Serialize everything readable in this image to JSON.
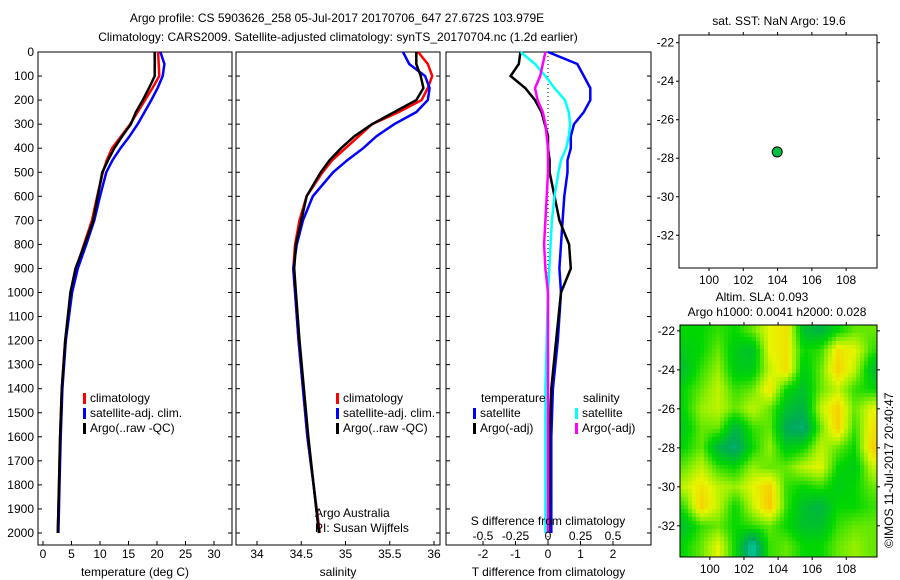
{
  "title": {
    "line1": "Argo profile: CS 5903626_258 05-Jul-2017 20170706_647 27.672S 103.979E",
    "line2": "Climatology: CARS2009. Satellite-adjusted climatology: synTS_20170704.nc (1.2d earlier)"
  },
  "chart_data": [
    {
      "id": "temperature",
      "type": "line",
      "xlabel": "temperature (deg C)",
      "ylabel": "",
      "xlim": [
        -0.9,
        33
      ],
      "ylim": [
        2050,
        0
      ],
      "xticks": [
        0,
        5,
        10,
        15,
        20,
        25,
        30
      ],
      "yticks": [
        0,
        100,
        200,
        300,
        400,
        500,
        600,
        700,
        800,
        900,
        1000,
        1100,
        1200,
        1300,
        1400,
        1500,
        1600,
        1700,
        1800,
        1900,
        2000
      ],
      "depth": [
        0,
        50,
        100,
        150,
        200,
        250,
        300,
        350,
        400,
        450,
        500,
        600,
        700,
        800,
        900,
        1000,
        1200,
        1400,
        1600,
        1800,
        2000
      ],
      "series": [
        {
          "name": "climatology",
          "color": "#ff0000",
          "values": [
            20.2,
            20.3,
            20.4,
            19.2,
            17.9,
            16.6,
            15.3,
            13.7,
            12.1,
            11.2,
            10.5,
            9.5,
            8.6,
            7.2,
            5.8,
            4.9,
            3.9,
            3.3,
            3.0,
            2.8,
            2.6
          ]
        },
        {
          "name": "satellite-adj. clim.",
          "color": "#0000ff",
          "values": [
            20.6,
            21.3,
            21.0,
            20.1,
            19.0,
            17.8,
            16.6,
            15.2,
            13.6,
            12.2,
            11.1,
            10.0,
            9.0,
            7.6,
            6.1,
            5.1,
            4.0,
            3.4,
            3.1,
            2.9,
            2.7
          ]
        },
        {
          "name": "Argo(..raw -QC)",
          "color": "#000000",
          "values": [
            19.6,
            19.6,
            19.6,
            18.6,
            17.5,
            16.3,
            15.4,
            13.9,
            12.5,
            11.4,
            10.4,
            9.6,
            8.8,
            7.3,
            5.7,
            4.8,
            3.9,
            3.3,
            3.0,
            2.8,
            2.6
          ]
        }
      ],
      "legend": [
        "climatology",
        "satellite-adj. clim.",
        "Argo(..raw -QC)"
      ]
    },
    {
      "id": "salinity",
      "type": "line",
      "xlabel": "salinity",
      "xlim": [
        33.77,
        36.06
      ],
      "ylim": [
        2050,
        0
      ],
      "xticks": [
        34,
        34.5,
        35,
        35.5,
        36
      ],
      "depth": [
        0,
        50,
        100,
        150,
        200,
        250,
        300,
        350,
        400,
        450,
        500,
        600,
        700,
        800,
        900,
        1000,
        1200,
        1400,
        1600,
        1800,
        2000
      ],
      "series": [
        {
          "name": "climatology",
          "color": "#ff0000",
          "values": [
            35.82,
            35.93,
            35.98,
            35.93,
            35.86,
            35.6,
            35.3,
            35.15,
            35.0,
            34.85,
            34.74,
            34.56,
            34.48,
            34.43,
            34.41,
            34.43,
            34.47,
            34.52,
            34.57,
            34.64,
            34.71
          ]
        },
        {
          "name": "satellite-adj. clim.",
          "color": "#0000ff",
          "values": [
            35.65,
            35.72,
            35.9,
            35.95,
            35.93,
            35.8,
            35.55,
            35.35,
            35.2,
            35.02,
            34.86,
            34.63,
            34.52,
            34.45,
            34.41,
            34.43,
            34.47,
            34.52,
            34.57,
            34.64,
            34.7
          ]
        },
        {
          "name": "Argo(..raw -QC)",
          "color": "#000000",
          "values": [
            35.8,
            35.8,
            35.85,
            35.88,
            35.8,
            35.55,
            35.3,
            35.1,
            34.95,
            34.82,
            34.72,
            34.56,
            34.5,
            34.44,
            34.42,
            34.44,
            34.48,
            34.53,
            34.58,
            34.64,
            34.7
          ]
        }
      ],
      "legend": [
        "climatology",
        "satellite-adj. clim.",
        "Argo(..raw -QC)"
      ],
      "annotations": [
        "Argo Australia",
        "PI: Susan Wijffels"
      ]
    },
    {
      "id": "differences",
      "type": "line",
      "xlabel": "T difference from climatology",
      "xlim": [
        -3.2,
        3.1
      ],
      "xticks": [
        -2,
        -1,
        0,
        1,
        2
      ],
      "secondary_xlabel": "S difference from climatology",
      "secondary_xticks": [
        -0.5,
        -0.25,
        0,
        0.25,
        0.5
      ],
      "s_scale": 4,
      "ylim": [
        2050,
        0
      ],
      "depth": [
        0,
        50,
        100,
        150,
        200,
        250,
        300,
        350,
        400,
        450,
        500,
        600,
        700,
        800,
        900,
        1000,
        1200,
        1400,
        1600,
        1800,
        2000
      ],
      "series": [
        {
          "name": "temperature satellite",
          "axis": "T",
          "color": "#0000ff",
          "values": [
            0.0,
            0.9,
            1.1,
            1.3,
            1.3,
            1.1,
            0.8,
            0.7,
            0.7,
            0.6,
            0.6,
            0.5,
            0.45,
            0.4,
            0.35,
            0.4,
            0.3,
            0.15,
            0.1,
            0.1,
            0.1
          ]
        },
        {
          "name": "temperature Argo(-adj)",
          "axis": "T",
          "color": "#000000",
          "values": [
            -0.85,
            -0.9,
            -1.15,
            -0.7,
            -0.4,
            -0.2,
            -0.1,
            0.0,
            0.0,
            0.05,
            0.05,
            0.2,
            0.35,
            0.65,
            0.7,
            0.4,
            0.25,
            0.1,
            0.05,
            0.05,
            0.03
          ]
        },
        {
          "name": "salinity satellite",
          "axis": "S",
          "color": "#00ffff",
          "values": [
            -0.21,
            -0.1,
            -0.02,
            0.05,
            0.13,
            0.16,
            0.17,
            0.16,
            0.14,
            0.1,
            0.08,
            0.05,
            0.03,
            0.02,
            0.01,
            0.0,
            -0.01,
            -0.02,
            -0.02,
            -0.02,
            -0.02
          ]
        },
        {
          "name": "salinity Argo(-adj)",
          "axis": "S",
          "color": "#ff00ff",
          "values": [
            -0.02,
            -0.04,
            -0.06,
            -0.1,
            -0.08,
            -0.04,
            -0.02,
            -0.01,
            0.0,
            0.0,
            0.0,
            -0.01,
            -0.02,
            -0.03,
            -0.02,
            0.0,
            0.0,
            0.0,
            0.0,
            0.0,
            0.0
          ]
        }
      ],
      "legend": {
        "temperature": "temperature",
        "salinity": "salinity",
        "satellite": "satellite",
        "argo": "Argo(-adj)"
      }
    },
    {
      "id": "sst-map",
      "type": "scatter",
      "title": "sat. SST: NaN Argo: 19.6",
      "xlim": [
        98.25,
        109.8
      ],
      "ylim": [
        -33.7,
        -21.6
      ],
      "xticks": [
        100,
        102,
        104,
        106,
        108
      ],
      "yticks": [
        -22,
        -24,
        -26,
        -28,
        -30,
        -32
      ],
      "points": [
        {
          "lon": 103.979,
          "lat": -27.672,
          "color": "#00c040"
        }
      ]
    },
    {
      "id": "sla-map",
      "type": "heatmap",
      "title_line1": "Altim. SLA: 0.093",
      "title_line2": "Argo h1000: 0.0041 h2000: 0.028",
      "xlim": [
        98.25,
        109.8
      ],
      "ylim": [
        -33.6,
        -21.7
      ],
      "xticks": [
        100,
        102,
        104,
        106,
        108
      ],
      "yticks": [
        -22,
        -24,
        -26,
        -28,
        -30,
        -32
      ],
      "grid_lon": [
        98.5,
        99.5,
        100.5,
        101.5,
        102.5,
        103.5,
        104.5,
        105.5,
        106.5,
        107.5,
        108.5,
        109.5
      ],
      "grid_lat": [
        -22,
        -23,
        -24,
        -25,
        -26,
        -27,
        -28,
        -29,
        -30,
        -31,
        -32,
        -33
      ],
      "values": [
        [
          0.5,
          0.5,
          0.55,
          0.5,
          0.6,
          0.75,
          0.8,
          0.4,
          0.35,
          0.5,
          0.6,
          0.6
        ],
        [
          0.45,
          0.5,
          0.6,
          0.45,
          0.4,
          0.75,
          0.8,
          0.5,
          0.55,
          0.8,
          0.75,
          0.55
        ],
        [
          0.4,
          0.55,
          0.65,
          0.45,
          0.45,
          0.7,
          0.82,
          0.45,
          0.6,
          0.85,
          0.7,
          0.4
        ],
        [
          0.5,
          0.6,
          0.7,
          0.55,
          0.6,
          0.8,
          0.5,
          0.4,
          0.6,
          0.7,
          0.55,
          0.5
        ],
        [
          0.5,
          0.65,
          0.7,
          0.6,
          0.7,
          0.6,
          0.4,
          0.35,
          0.7,
          0.85,
          0.6,
          0.75
        ],
        [
          0.45,
          0.6,
          0.6,
          0.35,
          0.55,
          0.6,
          0.3,
          0.25,
          0.6,
          0.85,
          0.55,
          0.8
        ],
        [
          0.5,
          0.6,
          0.35,
          0.25,
          0.5,
          0.65,
          0.45,
          0.5,
          0.7,
          0.6,
          0.5,
          0.85
        ],
        [
          0.6,
          0.7,
          0.55,
          0.5,
          0.65,
          0.6,
          0.6,
          0.7,
          0.75,
          0.5,
          0.45,
          0.7
        ],
        [
          0.7,
          0.8,
          0.7,
          0.65,
          0.75,
          0.85,
          0.55,
          0.5,
          0.55,
          0.45,
          0.5,
          0.6
        ],
        [
          0.55,
          0.85,
          0.7,
          0.5,
          0.7,
          0.88,
          0.55,
          0.4,
          0.35,
          0.5,
          0.5,
          0.55
        ],
        [
          0.4,
          0.55,
          0.6,
          0.5,
          0.55,
          0.6,
          0.5,
          0.4,
          0.4,
          0.55,
          0.6,
          0.6
        ],
        [
          0.5,
          0.6,
          0.75,
          0.5,
          0.15,
          0.55,
          0.6,
          0.5,
          0.5,
          0.6,
          0.65,
          0.6
        ]
      ]
    }
  ],
  "credit": "©IMOS 11-Jul-2017 20:40:47"
}
